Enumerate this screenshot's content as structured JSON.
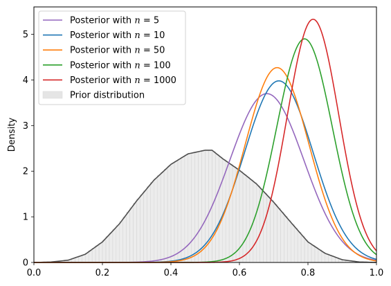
{
  "chart_data": {
    "type": "area",
    "title": "",
    "xlabel": "",
    "ylabel": "Density",
    "xlim": [
      0.0,
      1.0
    ],
    "ylim": [
      0,
      5.6
    ],
    "xticks": [
      0.0,
      0.2,
      0.4,
      0.6,
      0.8,
      1.0
    ],
    "xtick_labels": [
      "0.0",
      "0.2",
      "0.4",
      "0.6",
      "0.8",
      "1.0"
    ],
    "yticks": [
      0,
      1,
      2,
      3,
      4,
      5
    ],
    "ytick_labels": [
      "0",
      "1",
      "2",
      "3",
      "4",
      "5"
    ],
    "grid": false,
    "legend_position": "upper-left",
    "prior": {
      "name": "Prior distribution",
      "color": "#cccccc",
      "line_color": "#4d4d4d",
      "x": [
        0.0,
        0.05,
        0.1,
        0.15,
        0.2,
        0.25,
        0.3,
        0.35,
        0.4,
        0.45,
        0.5,
        0.52,
        0.55,
        0.6,
        0.65,
        0.7,
        0.75,
        0.8,
        0.85,
        0.9,
        0.95,
        1.0
      ],
      "y": [
        0.0,
        0.01,
        0.05,
        0.18,
        0.45,
        0.85,
        1.35,
        1.8,
        2.15,
        2.38,
        2.46,
        2.46,
        2.28,
        2.02,
        1.72,
        1.32,
        0.88,
        0.45,
        0.2,
        0.06,
        0.01,
        0.0
      ]
    },
    "series": [
      {
        "name": "Posterior with $n = 5$",
        "label_prefix": "Posterior with ",
        "label_var": "n",
        "label_suffix": " = 5",
        "color": "#9467bd",
        "mu": 0.68,
        "sigma": 0.108,
        "peak": 3.7
      },
      {
        "name": "Posterior with $n = 10$",
        "label_prefix": "Posterior with ",
        "label_var": "n",
        "label_suffix": " = 10",
        "color": "#1f77b4",
        "mu": 0.715,
        "sigma": 0.1,
        "peak": 3.98
      },
      {
        "name": "Posterior with $n = 50$",
        "label_prefix": "Posterior with ",
        "label_var": "n",
        "label_suffix": " = 50",
        "color": "#ff7f0e",
        "mu": 0.71,
        "sigma": 0.093,
        "peak": 4.27
      },
      {
        "name": "Posterior with $n = 100$",
        "label_prefix": "Posterior with ",
        "label_var": "n",
        "label_suffix": " = 100",
        "color": "#2ca02c",
        "mu": 0.79,
        "sigma": 0.081,
        "peak": 4.9
      },
      {
        "name": "Posterior with $n = 1000$",
        "label_prefix": "Posterior with ",
        "label_var": "n",
        "label_suffix": " = 1000",
        "color": "#d62728",
        "mu": 0.815,
        "sigma": 0.075,
        "peak": 5.33
      }
    ]
  }
}
